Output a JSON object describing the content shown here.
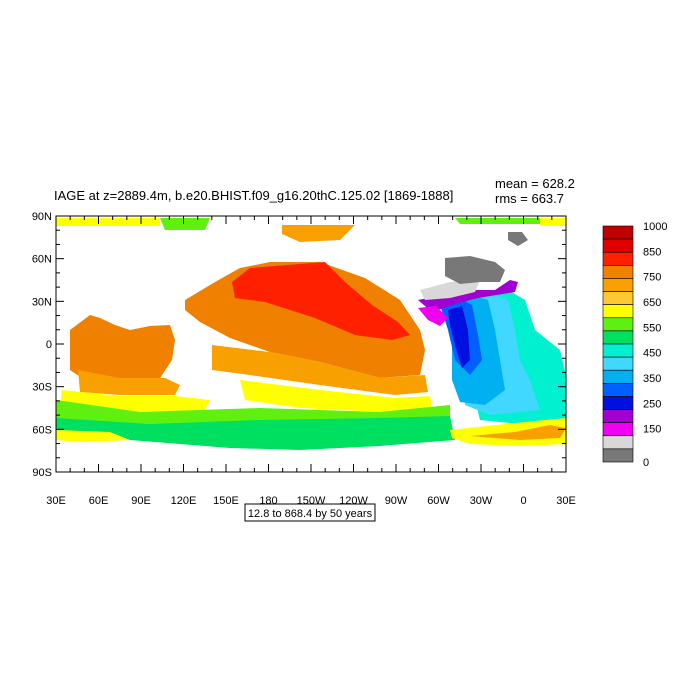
{
  "title": "IAGE at z=2889.4m, b.e20.BHIST.f09_g16.20thC.125.02 [1869-1888]",
  "stats": {
    "mean": "mean = 628.2",
    "rms": "rms = 663.7"
  },
  "contour_info": "12.8 to 868.4 by 50 years",
  "lat_labels": [
    "90N",
    "60N",
    "30N",
    "0",
    "30S",
    "60S",
    "90S"
  ],
  "lon_labels": [
    "30E",
    "60E",
    "90E",
    "120E",
    "150E",
    "180",
    "150W",
    "120W",
    "90W",
    "60W",
    "30W",
    "0",
    "30E"
  ],
  "colorbar": {
    "labels": [
      "1000",
      "850",
      "750",
      "650",
      "550",
      "450",
      "350",
      "250",
      "150",
      "0"
    ],
    "colors": [
      "#c00000",
      "#e00000",
      "#ff2000",
      "#f08000",
      "#f8a000",
      "#ffc830",
      "#ffff00",
      "#60f010",
      "#00e060",
      "#00f0d0",
      "#40d8ff",
      "#00b0f0",
      "#0060ff",
      "#0010e0",
      "#a000d0",
      "#f000f0",
      "#d8d8d8",
      "#787878"
    ]
  },
  "region_colors": {
    "pacific_north_core": "#ff2000",
    "pacific_orange": "#f08000",
    "pacific_light_orange": "#f8a000",
    "indian_orange": "#f08000",
    "southern_yellow": "#ffff00",
    "southern_green": "#00e060",
    "southern_lightgreen": "#60f010",
    "atlantic_cyan": "#00f0d0",
    "atlantic_lightblue": "#40d8ff",
    "atlantic_blue": "#00b0f0",
    "atlantic_deepblue": "#0060ff",
    "atlantic_darkblue": "#0010e0",
    "atlantic_purple": "#a000d0",
    "atlantic_magenta": "#f000f0",
    "arctic_gray": "#787878",
    "arctic_lightgray": "#d8d8d8",
    "arctic_yellow": "#ffff00",
    "arctic_green": "#60f010"
  }
}
